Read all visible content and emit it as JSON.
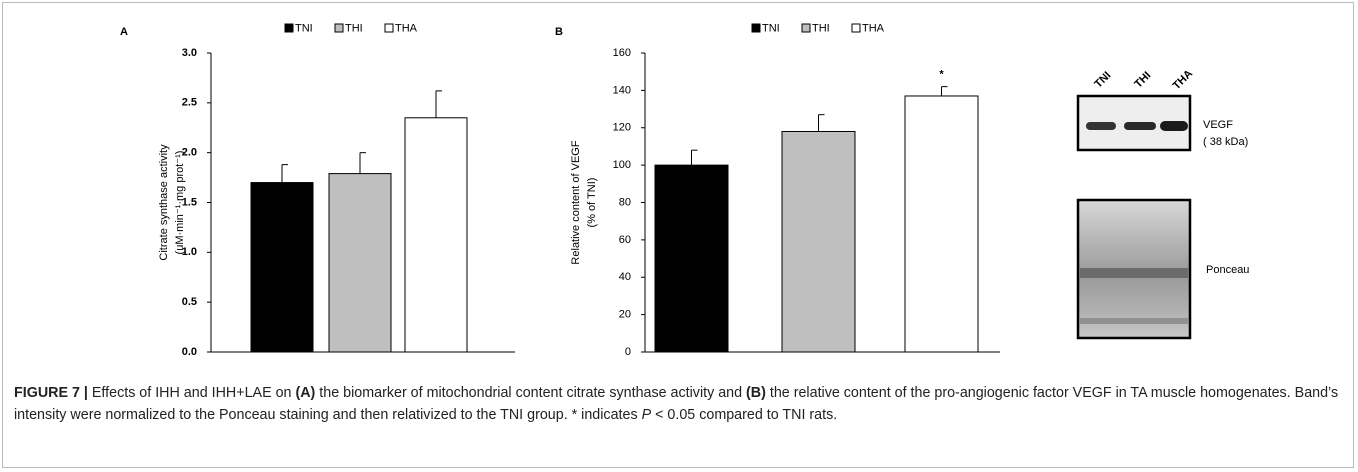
{
  "chart_data": [
    {
      "type": "bar",
      "panel": "A",
      "ylabel": "Citrate synthase activity",
      "ylabel_unit": "(uM·min⁻¹·mg prot⁻¹)",
      "series": [
        {
          "name": "TNI",
          "color": "#000000",
          "values": [
            1.7
          ],
          "errors": [
            0.18
          ]
        },
        {
          "name": "THI",
          "color": "#bfbfbf",
          "values": [
            1.79
          ],
          "errors": [
            0.21
          ]
        },
        {
          "name": "THA",
          "color": "#ffffff",
          "values": [
            2.35
          ],
          "errors": [
            0.27
          ]
        }
      ],
      "ylim": [
        0,
        3
      ],
      "yticks": [
        {
          "value": 0,
          "label": "0.0"
        },
        0.5,
        {
          "value": 1,
          "label": "1.0"
        },
        1.5,
        {
          "value": 2,
          "label": "2.0"
        },
        2.5,
        {
          "value": 3,
          "label": "3.0"
        }
      ],
      "legend": "top"
    },
    {
      "type": "bar",
      "panel": "B",
      "ylabel": "Relative content of VEGF",
      "ylabel_unit": "(% of TNI)",
      "series": [
        {
          "name": "TNI",
          "color": "#000000",
          "values": [
            100
          ],
          "errors": [
            8
          ]
        },
        {
          "name": "THI",
          "color": "#bfbfbf",
          "values": [
            118
          ],
          "errors": [
            9
          ]
        },
        {
          "name": "THA",
          "color": "#ffffff",
          "values": [
            137
          ],
          "errors": [
            5
          ]
        }
      ],
      "annotation": "*",
      "ylim": [
        0,
        160
      ],
      "yticks": [
        0,
        20,
        40,
        60,
        80,
        100,
        120,
        140,
        160
      ],
      "legend": "top"
    }
  ],
  "blot": {
    "lanes": [
      "TNI",
      "THI",
      "THA"
    ],
    "protein": "VEGF",
    "size": "( 38 kDa)",
    "loading": "Ponceau"
  },
  "caption": {
    "label": "FIGURE 7 |",
    "t1": " Effects of IHH and IHH+LAE on ",
    "a": "(A)",
    "t2": " the biomarker of mitochondrial content citrate synthase activity and ",
    "b": "(B)",
    "t3": " the relative content of the pro-angiogenic factor VEGF in TA muscle homogenates. Band’s intensity were normalized to the Ponceau staining and then relativized to the TNI group. * indicates ",
    "p": "P",
    "t4": " < 0.05 compared to TNI rats."
  }
}
